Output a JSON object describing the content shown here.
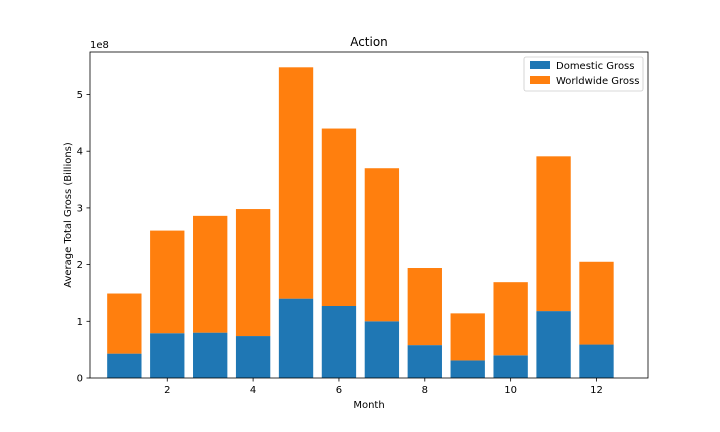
{
  "chart_data": {
    "type": "bar",
    "stacked": true,
    "title": "Action",
    "xlabel": "Month",
    "ylabel": "Average Total Gross (Billions)",
    "y_offset_label": "1e8",
    "x": [
      1,
      2,
      3,
      4,
      5,
      6,
      7,
      8,
      9,
      10,
      11,
      12
    ],
    "xticks": [
      "2",
      "4",
      "6",
      "8",
      "10",
      "12"
    ],
    "xtick_values": [
      2,
      4,
      6,
      8,
      10,
      12
    ],
    "yticks": [
      "0",
      "1",
      "2",
      "3",
      "4",
      "5"
    ],
    "ytick_values": [
      0,
      100000000,
      200000000,
      300000000,
      400000000,
      500000000
    ],
    "xlim": [
      0.2,
      13.2
    ],
    "ylim": [
      0,
      575000000
    ],
    "series": [
      {
        "name": "Domestic Gross",
        "color": "#1f77b4",
        "values": [
          43000000,
          79000000,
          80000000,
          74000000,
          140000000,
          127000000,
          100000000,
          58000000,
          31000000,
          40000000,
          118000000,
          59000000
        ]
      },
      {
        "name": "Worldwide Gross",
        "color": "#ff7f0e",
        "values": [
          106000000,
          181000000,
          206000000,
          224000000,
          408000000,
          313000000,
          270000000,
          136000000,
          83000000,
          129000000,
          273000000,
          146000000
        ]
      }
    ],
    "legend": "top-right",
    "grid": false
  }
}
